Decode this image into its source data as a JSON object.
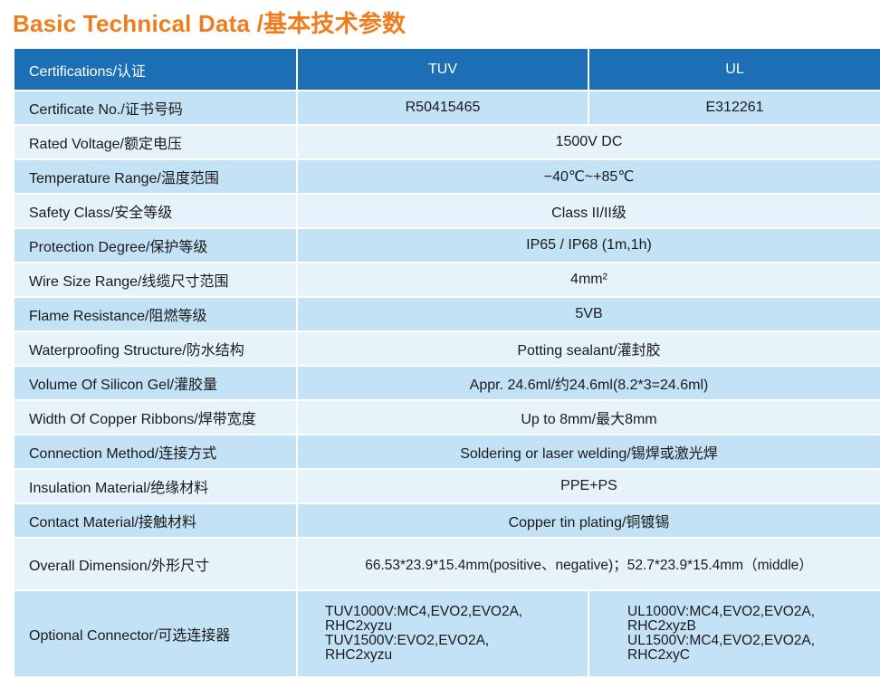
{
  "title": "Basic Technical Data /基本技术参数",
  "header": {
    "label": "Certifications/认证",
    "col1": "TUV",
    "col2": "UL"
  },
  "rows": [
    {
      "label": "Certificate No./证书号码",
      "v1": "R50415465",
      "v2": "E312261"
    },
    {
      "label": "Rated Voltage/额定电压",
      "value": "1500V DC"
    },
    {
      "label": "Temperature Range/温度范围",
      "value": "−40℃~+85℃"
    },
    {
      "label": "Safety Class/安全等级",
      "value": "Class II/II级"
    },
    {
      "label": "Protection Degree/保护等级",
      "value": "IP65 / IP68 (1m,1h)"
    },
    {
      "label": "Wire Size Range/线缆尺寸范围",
      "value": "4mm²"
    },
    {
      "label": "Flame Resistance/阻燃等级",
      "value": "5VB"
    },
    {
      "label": "Waterproofing Structure/防水结构",
      "value": "Potting sealant/灌封胶"
    },
    {
      "label": "Volume Of Silicon Gel/灌胶量",
      "value": "Appr. 24.6ml/约24.6ml(8.2*3=24.6ml)"
    },
    {
      "label": "Width Of Copper Ribbons/焊带宽度",
      "value": "Up to 8mm/最大8mm"
    },
    {
      "label": "Connection Method/连接方式",
      "value": "Soldering or laser welding/锡焊或激光焊"
    },
    {
      "label": "Insulation Material/绝缘材料",
      "value": "PPE+PS"
    },
    {
      "label": "Contact Material/接触材料",
      "value": "Copper tin plating/铜镀锡"
    },
    {
      "label": "Overall Dimension/外形尺寸",
      "value": "66.53*23.9*15.4mm(positive、negative)；52.7*23.9*15.4mm（middle）"
    },
    {
      "label": "Optional Connector/可选连接器",
      "v1": "TUV1000V:MC4,EVO2,EVO2A,\nRHC2xyzu\nTUV1500V:EVO2,EVO2A,\nRHC2xyzu",
      "v2": "UL1000V:MC4,EVO2,EVO2A,\nRHC2xyzB\nUL1500V:MC4,EVO2,EVO2A,\nRHC2xyC"
    }
  ]
}
